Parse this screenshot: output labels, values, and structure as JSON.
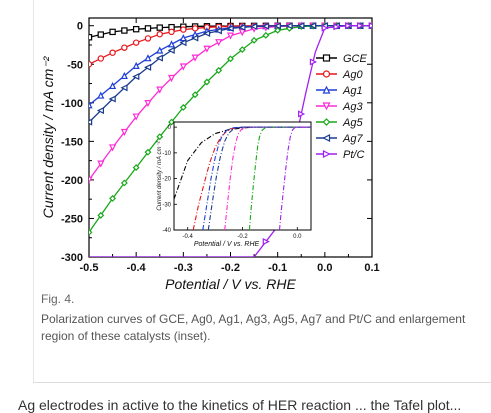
{
  "figure": {
    "label": "Fig. 4.",
    "caption": "Polarization curves of GCE, Ag0, Ag1, Ag3, Ag5, Ag7 and Pt/C and enlargement region of these catalysts (inset)."
  },
  "truncated_text": "Ag electrodes in active to the kinetics of HER reaction ... the Tafel plot...",
  "chart_data": [
    {
      "type": "line",
      "xlabel": "Potential / V vs. RHE",
      "ylabel": "Current density / mA cm⁻²",
      "xlim": [
        -0.5,
        0.1
      ],
      "ylim": [
        -300,
        10
      ],
      "xticks": [
        "-0.5",
        "-0.4",
        "-0.3",
        "-0.2",
        "-0.1",
        "0.0",
        "0.1"
      ],
      "yticks": [
        "0",
        "-50",
        "-100",
        "-150",
        "-200",
        "-250",
        "-300"
      ],
      "legend_position": "top-right",
      "series": [
        {
          "name": "GCE",
          "color": "#000000",
          "marker": "square",
          "x": [
            -0.5,
            -0.45,
            -0.4,
            -0.35,
            -0.3,
            -0.25,
            -0.2,
            -0.15,
            -0.1,
            -0.05,
            0.0,
            0.05,
            0.1
          ],
          "y": [
            -15,
            -8,
            -4.5,
            -2.5,
            -1.3,
            -0.7,
            -0.4,
            -0.2,
            -0.1,
            0,
            0,
            0,
            0
          ]
        },
        {
          "name": "Ag0",
          "color": "#e8141a",
          "marker": "circle",
          "x": [
            -0.5,
            -0.45,
            -0.4,
            -0.35,
            -0.3,
            -0.25,
            -0.2,
            -0.15,
            -0.1,
            -0.05,
            0.0,
            0.05,
            0.1
          ],
          "y": [
            -50,
            -35,
            -22,
            -11,
            -5,
            -2,
            -0.8,
            -0.3,
            -0.1,
            0,
            0,
            0,
            0
          ]
        },
        {
          "name": "Ag1",
          "color": "#1f3fd8",
          "marker": "triangle-up",
          "x": [
            -0.5,
            -0.45,
            -0.4,
            -0.35,
            -0.3,
            -0.25,
            -0.2,
            -0.15,
            -0.1,
            -0.05,
            0.0,
            0.05,
            0.1
          ],
          "y": [
            -103,
            -78,
            -52,
            -32,
            -16,
            -7,
            -2.5,
            -0.8,
            -0.2,
            0,
            0,
            0,
            0
          ]
        },
        {
          "name": "Ag3",
          "color": "#ff2bd6",
          "marker": "triangle-down",
          "x": [
            -0.5,
            -0.45,
            -0.4,
            -0.35,
            -0.3,
            -0.25,
            -0.2,
            -0.15,
            -0.1,
            -0.05,
            0.0,
            0.05,
            0.1
          ],
          "y": [
            -200,
            -158,
            -118,
            -83,
            -53,
            -30,
            -13,
            -4,
            -1,
            -0.2,
            0,
            0,
            0
          ]
        },
        {
          "name": "Ag5",
          "color": "#19a819",
          "marker": "diamond",
          "x": [
            -0.5,
            -0.45,
            -0.4,
            -0.35,
            -0.3,
            -0.25,
            -0.2,
            -0.15,
            -0.1,
            -0.05,
            0.0,
            0.05,
            0.1
          ],
          "y": [
            -268,
            -224,
            -184,
            -144,
            -106,
            -73,
            -43,
            -19,
            -6,
            -1,
            0,
            0,
            0
          ]
        },
        {
          "name": "Ag7",
          "color": "#1a3b8f",
          "marker": "triangle-left",
          "x": [
            -0.5,
            -0.45,
            -0.4,
            -0.35,
            -0.3,
            -0.25,
            -0.2,
            -0.15,
            -0.1,
            -0.05,
            0.0,
            0.05,
            0.1
          ],
          "y": [
            -125,
            -95,
            -66,
            -42,
            -22,
            -10,
            -3.5,
            -1,
            -0.3,
            0,
            0,
            0,
            0
          ]
        },
        {
          "name": "Pt/C",
          "color": "#a020f0",
          "marker": "triangle-right",
          "x": [
            -0.5,
            -0.4,
            -0.3,
            -0.2,
            -0.15,
            -0.1,
            -0.08,
            -0.06,
            -0.04,
            -0.02,
            0.0,
            0.05,
            0.1
          ],
          "y": [
            -300,
            -300,
            -300,
            -300,
            -300,
            -260,
            -203,
            -143,
            -86,
            -34,
            -3,
            0,
            0
          ]
        }
      ]
    },
    {
      "type": "line",
      "xlabel": "Potential / V vs. RHE",
      "ylabel": "Current density / mA cm⁻²",
      "xlim": [
        -0.45,
        0.05
      ],
      "ylim": [
        -40,
        2
      ],
      "xticks": [
        "-0.4",
        "-0.2",
        "0.0"
      ],
      "yticks": [
        "0",
        "-10",
        "-20",
        "-30",
        "-40"
      ],
      "series": [
        {
          "name": "GCE",
          "color": "#000000",
          "x": [
            -0.45,
            -0.4,
            -0.35,
            -0.3,
            -0.25,
            -0.2,
            -0.15,
            0.0,
            0.05
          ],
          "y": [
            -28,
            -13,
            -6,
            -2.5,
            -1,
            -0.3,
            0,
            0,
            0
          ]
        },
        {
          "name": "Ag0",
          "color": "#e8141a",
          "x": [
            -0.38,
            -0.36,
            -0.34,
            -0.32,
            -0.3,
            -0.28,
            -0.26,
            -0.24,
            -0.2,
            0.0,
            0.05
          ],
          "y": [
            -40,
            -30,
            -22,
            -14,
            -8,
            -4,
            -1.8,
            -0.6,
            0,
            0,
            0
          ]
        },
        {
          "name": "Ag1",
          "color": "#1f3fd8",
          "x": [
            -0.345,
            -0.33,
            -0.315,
            -0.3,
            -0.285,
            -0.27,
            -0.255,
            -0.24,
            -0.2,
            0.0,
            0.05
          ],
          "y": [
            -40,
            -30,
            -20,
            -12,
            -6,
            -2.6,
            -1,
            -0.3,
            0,
            0,
            0
          ]
        },
        {
          "name": "Ag3",
          "color": "#ff2bd6",
          "x": [
            -0.265,
            -0.255,
            -0.245,
            -0.235,
            -0.225,
            -0.215,
            -0.205,
            -0.19,
            -0.17,
            0.0,
            0.05
          ],
          "y": [
            -40,
            -30,
            -20,
            -12,
            -6,
            -2.5,
            -1,
            -0.3,
            0,
            0,
            0
          ]
        },
        {
          "name": "Ag5",
          "color": "#19a819",
          "x": [
            -0.175,
            -0.168,
            -0.16,
            -0.152,
            -0.144,
            -0.136,
            -0.128,
            -0.118,
            -0.1,
            0.0,
            0.05
          ],
          "y": [
            -40,
            -31,
            -22,
            -14,
            -7,
            -3,
            -1.2,
            -0.3,
            0,
            0,
            0
          ]
        },
        {
          "name": "Ag7",
          "color": "#1a3b8f",
          "x": [
            -0.325,
            -0.31,
            -0.295,
            -0.28,
            -0.265,
            -0.25,
            -0.235,
            -0.22,
            -0.19,
            0.0,
            0.05
          ],
          "y": [
            -40,
            -29,
            -19,
            -11,
            -5.5,
            -2.3,
            -0.9,
            -0.3,
            0,
            0,
            0
          ]
        },
        {
          "name": "Pt/C",
          "color": "#a020f0",
          "x": [
            -0.065,
            -0.058,
            -0.05,
            -0.042,
            -0.034,
            -0.026,
            -0.018,
            -0.01,
            0.0,
            0.05
          ],
          "y": [
            -40,
            -32,
            -24,
            -16,
            -9,
            -4,
            -1.2,
            -0.2,
            0,
            0
          ]
        }
      ]
    }
  ]
}
